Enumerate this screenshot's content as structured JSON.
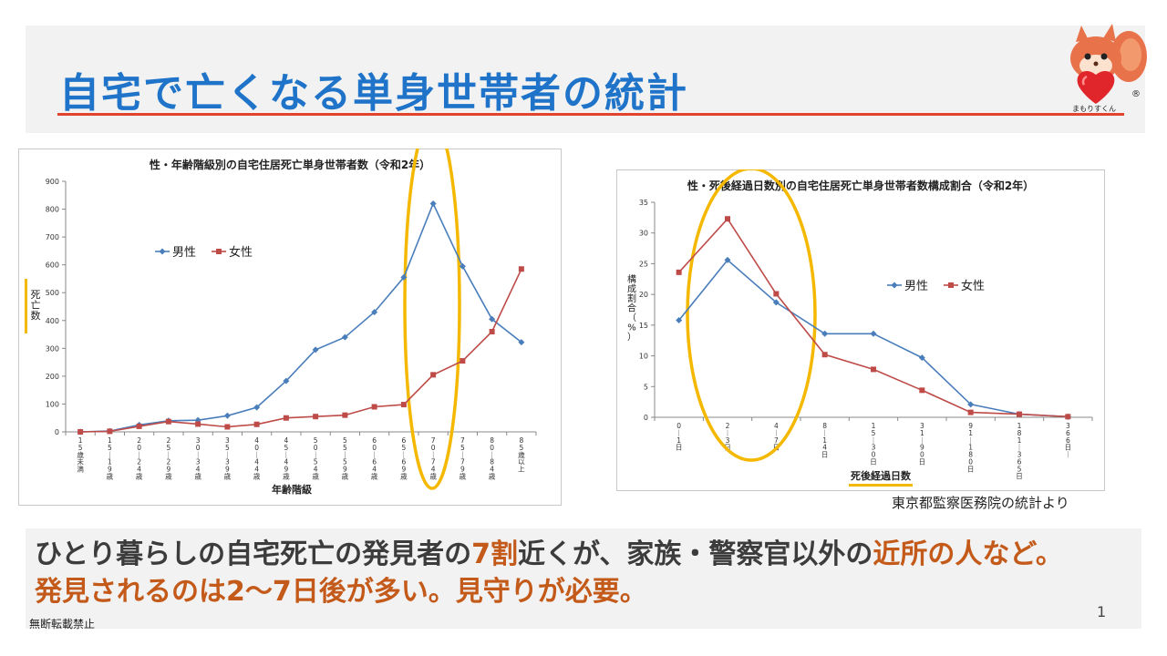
{
  "slide": {
    "title": "自宅で亡くなる単身世帯者の統計",
    "mascot_label": "まもりすくん",
    "mascot_mark": "®",
    "source": "東京都監察医務院の統計より",
    "message_line1_parts": [
      "ひとり暮らしの自宅死亡の発見者の",
      "7割",
      "近くが、家族・警察官以外の",
      "近所の人など。"
    ],
    "message_line2": "発見されるのは2〜7日後が多い。見守りが必要。",
    "page_number": "1",
    "copyright": "無断転載禁止"
  },
  "colors": {
    "male": "#4a7ebb",
    "female": "#be4b48",
    "highlight": "#f5b800",
    "title": "#1f74c9",
    "accent": "#c45a1a"
  },
  "chart_data": [
    {
      "type": "line",
      "title": "性・年齢階級別の自宅住居死亡単身世帯者数（令和2年）",
      "xlabel": "年齢階級",
      "ylabel": "死亡数",
      "ylim": [
        0,
        900
      ],
      "yticks": [
        0,
        100,
        200,
        300,
        400,
        500,
        600,
        700,
        800,
        900
      ],
      "categories": [
        "15歳未満",
        "15〜19歳",
        "20〜24歳",
        "25〜29歳",
        "30〜34歳",
        "35〜39歳",
        "40〜44歳",
        "45〜49歳",
        "50〜54歳",
        "55〜59歳",
        "60〜64歳",
        "65〜69歳",
        "70〜74歳",
        "75〜79歳",
        "80〜84歳",
        "85歳以上"
      ],
      "series": [
        {
          "name": "男性",
          "values": [
            0,
            3,
            25,
            40,
            42,
            58,
            88,
            183,
            295,
            340,
            430,
            555,
            820,
            595,
            405,
            322
          ]
        },
        {
          "name": "女性",
          "values": [
            0,
            2,
            20,
            37,
            28,
            18,
            27,
            50,
            55,
            60,
            90,
            98,
            205,
            255,
            360,
            585
          ]
        }
      ],
      "legend": "inside-top-left",
      "grid": false
    },
    {
      "type": "line",
      "title": "性・死後経過日数別の自宅住居死亡単身世帯者数構成割合（令和2年）",
      "xlabel": "死後経過日数",
      "ylabel": "構成割合（%）",
      "ylim": [
        0,
        35
      ],
      "yticks": [
        0,
        5,
        10,
        15,
        20,
        25,
        30,
        35
      ],
      "categories": [
        "0〜1日",
        "2〜3日",
        "4〜7日",
        "8〜14日",
        "15〜30日",
        "31〜90日",
        "91〜180日",
        "181〜365日",
        "366日〜"
      ],
      "series": [
        {
          "name": "男性",
          "values": [
            15.8,
            25.6,
            18.7,
            13.6,
            13.6,
            9.7,
            2.1,
            0.5,
            0.1
          ]
        },
        {
          "name": "女性",
          "values": [
            23.6,
            32.3,
            20.1,
            10.2,
            7.8,
            4.4,
            0.8,
            0.5,
            0.1
          ]
        }
      ],
      "legend": "inside-center-right",
      "grid": false
    }
  ]
}
